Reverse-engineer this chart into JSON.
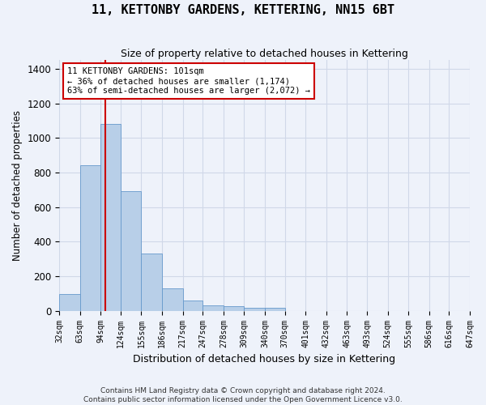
{
  "title": "11, KETTONBY GARDENS, KETTERING, NN15 6BT",
  "subtitle": "Size of property relative to detached houses in Kettering",
  "xlabel": "Distribution of detached houses by size in Kettering",
  "ylabel": "Number of detached properties",
  "footer_line1": "Contains HM Land Registry data © Crown copyright and database right 2024.",
  "footer_line2": "Contains public sector information licensed under the Open Government Licence v3.0.",
  "bin_edges": [
    32,
    63,
    94,
    124,
    155,
    186,
    217,
    247,
    278,
    309,
    340,
    370,
    401,
    432,
    463,
    493,
    524,
    555,
    586,
    616,
    647
  ],
  "bar_heights": [
    97,
    843,
    1079,
    693,
    332,
    130,
    60,
    32,
    27,
    17,
    15,
    0,
    0,
    0,
    0,
    0,
    0,
    0,
    0,
    0
  ],
  "bar_color": "#b8cfe8",
  "bar_edge_color": "#6699cc",
  "grid_color": "#d0d8e8",
  "background_color": "#eef2fa",
  "property_size": 101,
  "annotation_line1": "11 KETTONBY GARDENS: 101sqm",
  "annotation_line2": "← 36% of detached houses are smaller (1,174)",
  "annotation_line3": "63% of semi-detached houses are larger (2,072) →",
  "annotation_box_color": "#ffffff",
  "annotation_box_edge_color": "#cc0000",
  "red_line_color": "#cc0000",
  "ylim": [
    0,
    1450
  ],
  "yticks": [
    0,
    200,
    400,
    600,
    800,
    1000,
    1200,
    1400
  ],
  "tick_label_fontsize": 7.0,
  "ylabel_fontsize": 8.5,
  "xlabel_fontsize": 9.0,
  "title_fontsize": 11,
  "subtitle_fontsize": 9.0,
  "footer_fontsize": 6.5
}
